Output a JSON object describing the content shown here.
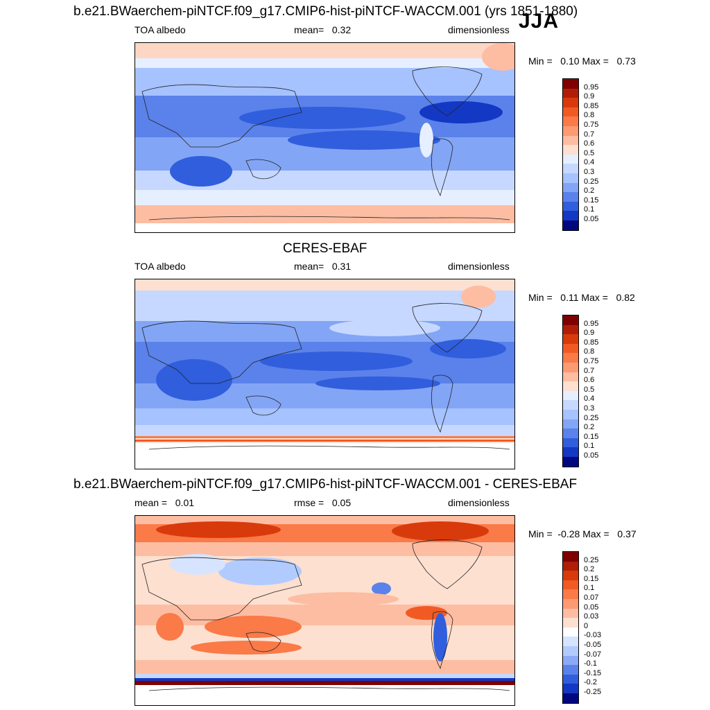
{
  "season": "JJA",
  "panels": [
    {
      "title": "b.e21.BWaerchem-piNTCF.f09_g17.CMIP6-hist-piNTCF-WACCM.001 (yrs 1851-1880)",
      "variable": "TOA albedo",
      "stat_label": "mean=",
      "stat_value": "0.32",
      "units": "dimensionless",
      "min_label": "Min =",
      "min_value": "0.10",
      "max_label": "Max =",
      "max_value": "0.73",
      "legend": {
        "labels": [
          "0.95",
          "0.9",
          "0.85",
          "0.8",
          "0.75",
          "0.7",
          "0.6",
          "0.5",
          "0.4",
          "0.3",
          "0.25",
          "0.2",
          "0.15",
          "0.1",
          "0.05"
        ],
        "colors": [
          "#7f0000",
          "#b01e08",
          "#d93a0c",
          "#f25a24",
          "#fa7a48",
          "#fc9a72",
          "#fdbda2",
          "#fde0d0",
          "#e6efff",
          "#c6d8ff",
          "#a6c2ff",
          "#83a5f5",
          "#5a82ea",
          "#305edd",
          "#1338c4",
          "#000880"
        ]
      }
    },
    {
      "title": "CERES-EBAF",
      "variable": "TOA albedo",
      "stat_label": "mean=",
      "stat_value": "0.31",
      "units": "dimensionless",
      "min_label": "Min =",
      "min_value": "0.11",
      "max_label": "Max =",
      "max_value": "0.82",
      "legend": {
        "labels": [
          "0.95",
          "0.9",
          "0.85",
          "0.8",
          "0.75",
          "0.7",
          "0.6",
          "0.5",
          "0.4",
          "0.3",
          "0.25",
          "0.2",
          "0.15",
          "0.1",
          "0.05"
        ],
        "colors": [
          "#7f0000",
          "#b01e08",
          "#d93a0c",
          "#f25a24",
          "#fa7a48",
          "#fc9a72",
          "#fdbda2",
          "#fde0d0",
          "#e6efff",
          "#c6d8ff",
          "#a6c2ff",
          "#83a5f5",
          "#5a82ea",
          "#305edd",
          "#1338c4",
          "#000880"
        ]
      }
    },
    {
      "title": "b.e21.BWaerchem-piNTCF.f09_g17.CMIP6-hist-piNTCF-WACCM.001 - CERES-EBAF",
      "variable": "mean =",
      "stat_label": "rmse =",
      "stat_value": "0.05",
      "mean_value": "0.01",
      "units": "dimensionless",
      "min_label": "Min =",
      "min_value": "-0.28",
      "max_label": "Max =",
      "max_value": "0.37",
      "legend": {
        "labels": [
          "0.25",
          "0.2",
          "0.15",
          "0.1",
          "0.07",
          "0.05",
          "0.03",
          "0",
          "-0.03",
          "-0.05",
          "-0.07",
          "-0.1",
          "-0.15",
          "-0.2",
          "-0.25"
        ],
        "colors": [
          "#7f0000",
          "#b01e08",
          "#d93a0c",
          "#f25a24",
          "#fa7a48",
          "#fc9a72",
          "#fdbda2",
          "#fde0d0",
          "#ffffff",
          "#d6e4ff",
          "#b2cbff",
          "#8aaaf5",
          "#5a82ea",
          "#305edd",
          "#1338c4",
          "#000880"
        ]
      }
    }
  ]
}
